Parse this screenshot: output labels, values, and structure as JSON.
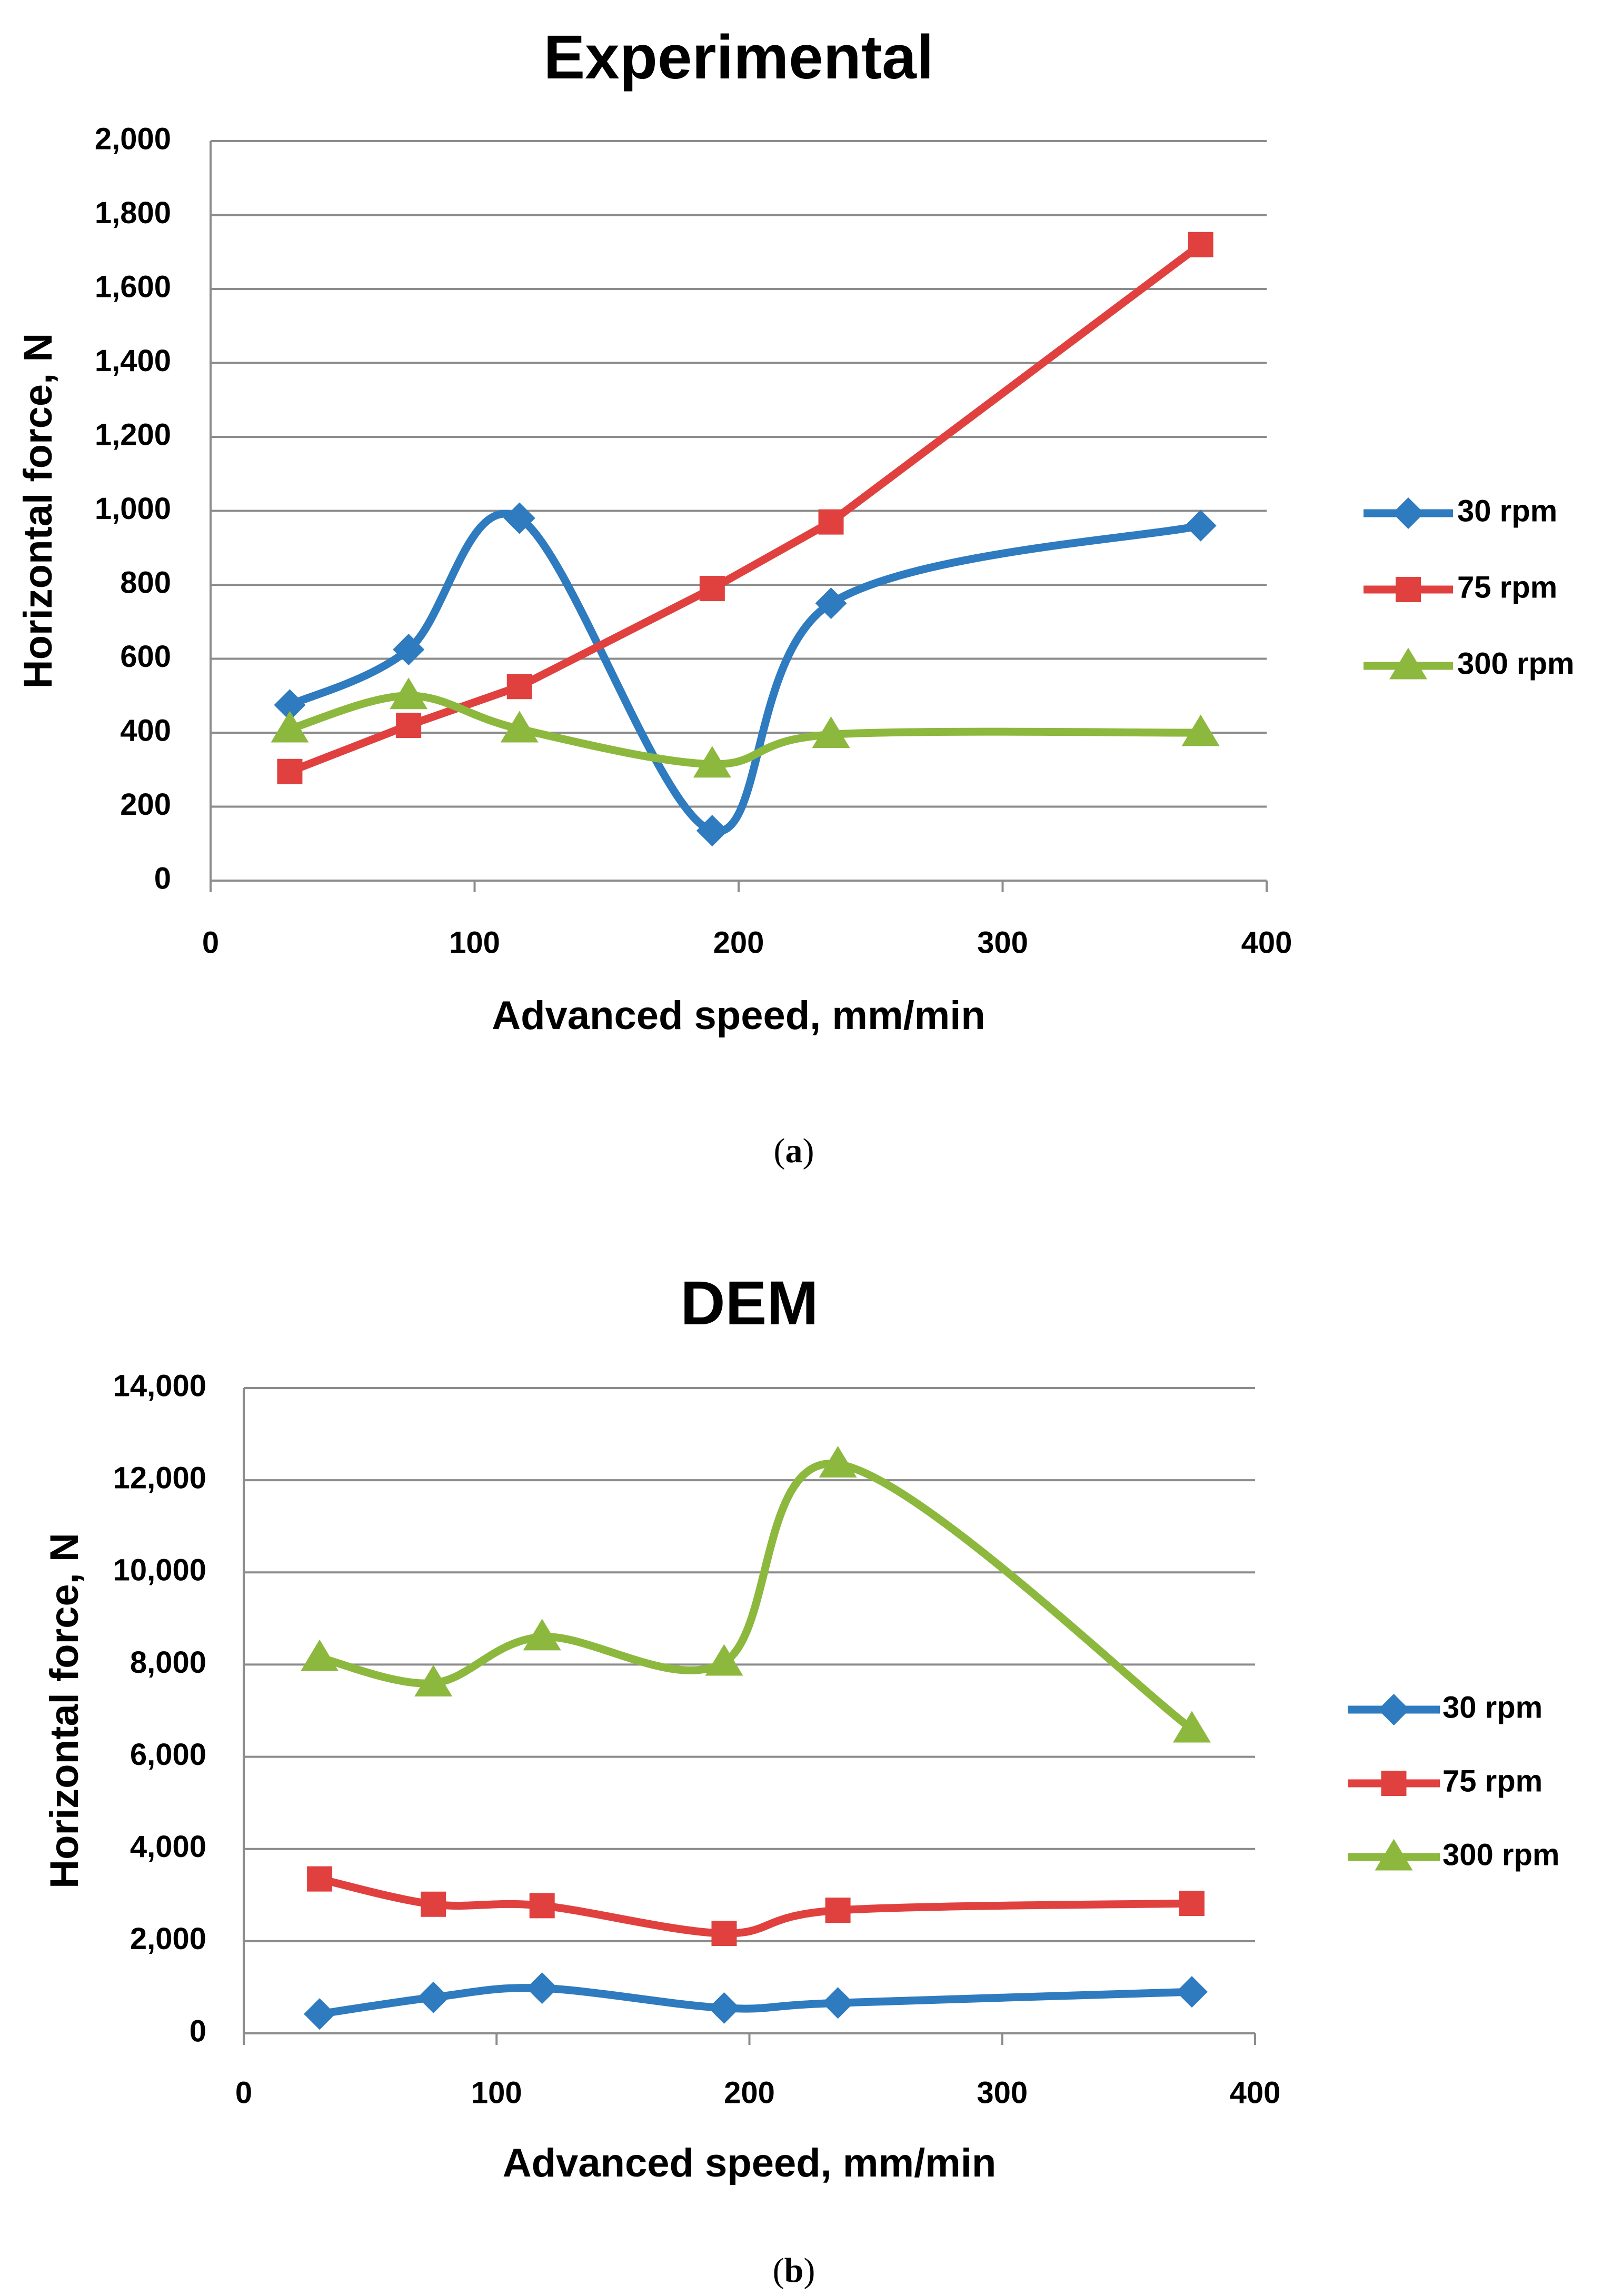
{
  "chart_data": [
    {
      "type": "line",
      "title": "Experimental",
      "xlabel": "Advanced speed, mm/min",
      "ylabel": "Horizontal force, N",
      "xlim": [
        0,
        400
      ],
      "ylim": [
        0,
        2000
      ],
      "xticks": [
        0,
        100,
        200,
        300,
        400
      ],
      "xtick_labels": [
        "0",
        "100",
        "200",
        "300",
        "400"
      ],
      "yticks": [
        0,
        200,
        400,
        600,
        800,
        1000,
        1200,
        1400,
        1600,
        1800,
        2000
      ],
      "ytick_labels": [
        "0",
        "200",
        "400",
        "600",
        "800",
        "1,000",
        "1,200",
        "1,400",
        "1,600",
        "1,800",
        "2,000"
      ],
      "grid": "horizontal",
      "legend": "right",
      "caption": {
        "open": "(",
        "letter": "a",
        "close": ")"
      },
      "x": [
        30,
        75,
        117,
        190,
        235,
        375
      ],
      "series": [
        {
          "name": "30 rpm",
          "color": "#2E7BBF",
          "marker": "diamond",
          "smooth": true,
          "values": [
            475,
            625,
            980,
            135,
            750,
            960
          ]
        },
        {
          "name": "75 rpm",
          "color": "#E0413F",
          "marker": "square",
          "smooth": false,
          "values": [
            295,
            420,
            525,
            790,
            970,
            1720
          ]
        },
        {
          "name": "300 rpm",
          "color": "#8DB83E",
          "marker": "triangle",
          "smooth": true,
          "values": [
            410,
            500,
            410,
            315,
            395,
            400
          ]
        }
      ]
    },
    {
      "type": "line",
      "title": "DEM",
      "xlabel": "Advanced speed, mm/min",
      "ylabel": "Horizontal force, N",
      "xlim": [
        0,
        400
      ],
      "ylim": [
        0,
        14000
      ],
      "xticks": [
        0,
        100,
        200,
        300,
        400
      ],
      "xtick_labels": [
        "0",
        "100",
        "200",
        "300",
        "400"
      ],
      "yticks": [
        0,
        2000,
        4000,
        6000,
        8000,
        10000,
        12000,
        14000
      ],
      "ytick_labels": [
        "0",
        "2,000",
        "4,000",
        "6,000",
        "8,000",
        "10,000",
        "12,000",
        "14,000"
      ],
      "grid": "horizontal",
      "legend": "right",
      "caption": {
        "open": "(",
        "letter": "b",
        "close": ")"
      },
      "x": [
        30,
        75,
        118,
        190,
        235,
        375
      ],
      "series": [
        {
          "name": "30 rpm",
          "color": "#2E7BBF",
          "marker": "diamond",
          "smooth": true,
          "values": [
            420,
            780,
            980,
            550,
            660,
            900
          ]
        },
        {
          "name": "75 rpm",
          "color": "#E0413F",
          "marker": "square",
          "smooth": true,
          "values": [
            3350,
            2800,
            2770,
            2170,
            2670,
            2820
          ]
        },
        {
          "name": "300 rpm",
          "color": "#8DB83E",
          "marker": "triangle",
          "smooth": true,
          "values": [
            8150,
            7600,
            8600,
            8050,
            12350,
            6600
          ]
        }
      ]
    }
  ]
}
